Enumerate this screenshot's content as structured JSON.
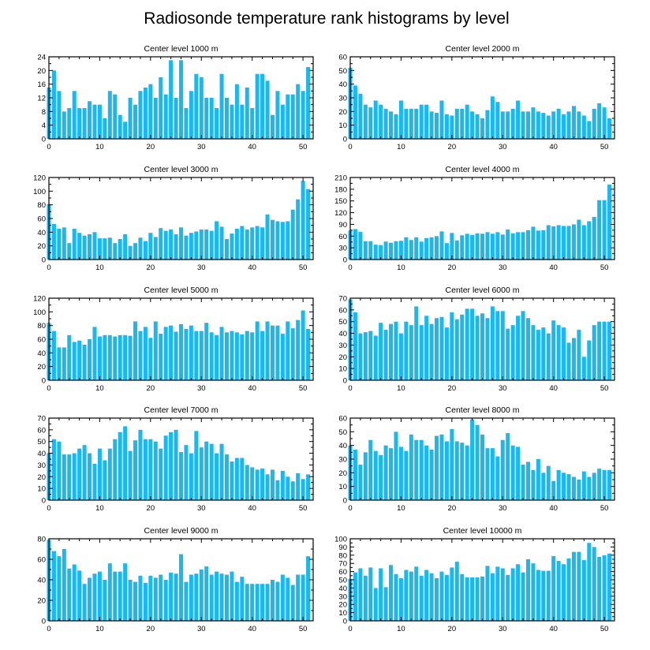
{
  "figure": {
    "title": "Radiosonde temperature rank histograms by level"
  },
  "style": {
    "bar_color": "#1ab8f2",
    "axis_color": "#000000",
    "background": "#ffffff"
  },
  "chart_data": [
    {
      "type": "bar",
      "title": "Center level 1000 m",
      "xlabel": "",
      "ylabel": "",
      "xlim": [
        0,
        52
      ],
      "ylim": [
        0,
        24
      ],
      "xticks": [
        0,
        10,
        20,
        30,
        40,
        50
      ],
      "yticks": [
        0,
        4,
        8,
        12,
        16,
        20,
        24
      ],
      "values": [
        15,
        20,
        14,
        8,
        9,
        14,
        9,
        9,
        11,
        10,
        10,
        6,
        14,
        13,
        7,
        5,
        12,
        10,
        14,
        15,
        16,
        12,
        18,
        13,
        23,
        12,
        23,
        9,
        14,
        19,
        18,
        12,
        12,
        9,
        19,
        12,
        10,
        16,
        10,
        15,
        9,
        19,
        19,
        17,
        7,
        14,
        10,
        13,
        13,
        16,
        14,
        21
      ]
    },
    {
      "type": "bar",
      "title": "Center level 2000 m",
      "xlabel": "",
      "ylabel": "",
      "xlim": [
        0,
        52
      ],
      "ylim": [
        0,
        60
      ],
      "xticks": [
        0,
        10,
        20,
        30,
        40,
        50
      ],
      "yticks": [
        0,
        10,
        20,
        30,
        40,
        50,
        60
      ],
      "values": [
        52,
        39,
        33,
        25,
        23,
        28,
        25,
        22,
        20,
        18,
        28,
        22,
        22,
        22,
        25,
        25,
        20,
        19,
        28,
        18,
        17,
        22,
        22,
        25,
        20,
        18,
        15,
        21,
        31,
        27,
        20,
        20,
        22,
        28,
        20,
        20,
        23,
        20,
        19,
        17,
        20,
        22,
        18,
        20,
        24,
        20,
        17,
        13,
        22,
        26,
        23,
        15
      ]
    },
    {
      "type": "bar",
      "title": "Center level 3000 m",
      "xlabel": "",
      "ylabel": "",
      "xlim": [
        0,
        52
      ],
      "ylim": [
        0,
        120
      ],
      "xticks": [
        0,
        10,
        20,
        30,
        40,
        50
      ],
      "yticks": [
        0,
        20,
        40,
        60,
        80,
        100,
        120
      ],
      "values": [
        81,
        52,
        45,
        47,
        24,
        45,
        39,
        35,
        37,
        40,
        31,
        31,
        32,
        24,
        30,
        37,
        20,
        24,
        32,
        27,
        39,
        33,
        46,
        42,
        44,
        37,
        47,
        35,
        39,
        41,
        44,
        44,
        42,
        56,
        48,
        30,
        38,
        45,
        49,
        44,
        47,
        49,
        47,
        66,
        58,
        56,
        55,
        56,
        73,
        88,
        115,
        103
      ]
    },
    {
      "type": "bar",
      "title": "Center level 4000 m",
      "xlabel": "",
      "ylabel": "",
      "xlim": [
        0,
        52
      ],
      "ylim": [
        0,
        210
      ],
      "xticks": [
        0,
        10,
        20,
        30,
        40,
        50
      ],
      "yticks": [
        0,
        30,
        60,
        90,
        120,
        150,
        180,
        210
      ],
      "values": [
        74,
        78,
        71,
        47,
        47,
        38,
        37,
        46,
        43,
        47,
        48,
        57,
        50,
        57,
        46,
        55,
        57,
        60,
        72,
        42,
        68,
        49,
        62,
        66,
        63,
        67,
        66,
        70,
        66,
        70,
        64,
        77,
        67,
        70,
        70,
        75,
        84,
        74,
        75,
        88,
        85,
        88,
        86,
        86,
        90,
        102,
        88,
        98,
        109,
        152,
        152,
        192
      ]
    },
    {
      "type": "bar",
      "title": "Center level 5000 m",
      "xlabel": "",
      "ylabel": "",
      "xlim": [
        0,
        52
      ],
      "ylim": [
        0,
        120
      ],
      "xticks": [
        0,
        10,
        20,
        30,
        40,
        50
      ],
      "yticks": [
        0,
        20,
        40,
        60,
        80,
        100,
        120
      ],
      "values": [
        84,
        72,
        48,
        48,
        66,
        56,
        58,
        52,
        60,
        78,
        64,
        66,
        66,
        64,
        66,
        66,
        65,
        86,
        72,
        78,
        62,
        86,
        68,
        78,
        80,
        71,
        82,
        75,
        80,
        72,
        72,
        84,
        70,
        66,
        78,
        70,
        72,
        70,
        67,
        72,
        70,
        86,
        72,
        86,
        80,
        80,
        68,
        86,
        76,
        88,
        102,
        75
      ]
    },
    {
      "type": "bar",
      "title": "Center level 6000 m",
      "xlabel": "",
      "ylabel": "",
      "xlim": [
        0,
        52
      ],
      "ylim": [
        0,
        70
      ],
      "xticks": [
        0,
        10,
        20,
        30,
        40,
        50
      ],
      "yticks": [
        0,
        10,
        20,
        30,
        40,
        50,
        60,
        70
      ],
      "values": [
        69,
        58,
        40,
        41,
        42,
        38,
        49,
        43,
        48,
        50,
        40,
        50,
        47,
        63,
        47,
        55,
        48,
        53,
        54,
        45,
        58,
        52,
        56,
        61,
        61,
        55,
        57,
        53,
        63,
        59,
        59,
        44,
        47,
        55,
        59,
        53,
        47,
        43,
        45,
        40,
        51,
        47,
        45,
        32,
        36,
        43,
        20,
        34,
        47,
        50,
        50,
        50
      ]
    },
    {
      "type": "bar",
      "title": "Center level 7000 m",
      "xlabel": "",
      "ylabel": "",
      "xlim": [
        0,
        52
      ],
      "ylim": [
        0,
        70
      ],
      "xticks": [
        0,
        10,
        20,
        30,
        40,
        50
      ],
      "yticks": [
        0,
        10,
        20,
        30,
        40,
        50,
        60,
        70
      ],
      "values": [
        40,
        52,
        50,
        39,
        39,
        40,
        44,
        47,
        40,
        31,
        44,
        34,
        44,
        52,
        58,
        63,
        42,
        51,
        60,
        52,
        52,
        50,
        44,
        55,
        58,
        60,
        41,
        47,
        40,
        59,
        45,
        50,
        48,
        40,
        48,
        39,
        33,
        36,
        36,
        30,
        28,
        26,
        27,
        22,
        26,
        17,
        25,
        20,
        16,
        23,
        18,
        22
      ]
    },
    {
      "type": "bar",
      "title": "Center level 8000 m",
      "xlabel": "",
      "ylabel": "",
      "xlim": [
        0,
        52
      ],
      "ylim": [
        0,
        60
      ],
      "xticks": [
        0,
        10,
        20,
        30,
        40,
        50
      ],
      "yticks": [
        0,
        10,
        20,
        30,
        40,
        50,
        60
      ],
      "values": [
        40,
        37,
        26,
        35,
        44,
        36,
        33,
        40,
        38,
        50,
        39,
        36,
        48,
        44,
        44,
        40,
        37,
        47,
        48,
        43,
        52,
        43,
        42,
        40,
        59,
        55,
        48,
        38,
        38,
        32,
        44,
        49,
        40,
        39,
        26,
        28,
        22,
        30,
        20,
        25,
        14,
        22,
        20,
        19,
        17,
        15,
        21,
        17,
        20,
        23,
        22,
        22
      ]
    },
    {
      "type": "bar",
      "title": "Center level 9000 m",
      "xlabel": "",
      "ylabel": "",
      "xlim": [
        0,
        52
      ],
      "ylim": [
        0,
        80
      ],
      "xticks": [
        0,
        10,
        20,
        30,
        40,
        50
      ],
      "yticks": [
        0,
        20,
        40,
        60,
        80
      ],
      "values": [
        79,
        68,
        63,
        70,
        51,
        55,
        49,
        36,
        42,
        46,
        48,
        40,
        56,
        48,
        48,
        56,
        40,
        38,
        44,
        37,
        44,
        42,
        45,
        40,
        47,
        46,
        65,
        38,
        45,
        46,
        50,
        53,
        45,
        48,
        46,
        45,
        48,
        38,
        43,
        36,
        36,
        36,
        36,
        36,
        40,
        38,
        45,
        42,
        35,
        45,
        45,
        63
      ]
    },
    {
      "type": "bar",
      "title": "Center level 10000 m",
      "xlabel": "",
      "ylabel": "",
      "xlim": [
        0,
        52
      ],
      "ylim": [
        0,
        100
      ],
      "xticks": [
        0,
        10,
        20,
        30,
        40,
        50
      ],
      "yticks": [
        0,
        10,
        20,
        30,
        40,
        50,
        60,
        70,
        80,
        90,
        100
      ],
      "values": [
        51,
        59,
        64,
        55,
        65,
        40,
        64,
        41,
        68,
        57,
        52,
        62,
        60,
        66,
        55,
        62,
        58,
        52,
        60,
        56,
        65,
        72,
        57,
        53,
        53,
        53,
        54,
        67,
        58,
        66,
        64,
        56,
        64,
        69,
        59,
        75,
        70,
        62,
        61,
        61,
        79,
        73,
        69,
        76,
        84,
        84,
        74,
        95,
        90,
        78,
        80,
        82
      ]
    }
  ]
}
